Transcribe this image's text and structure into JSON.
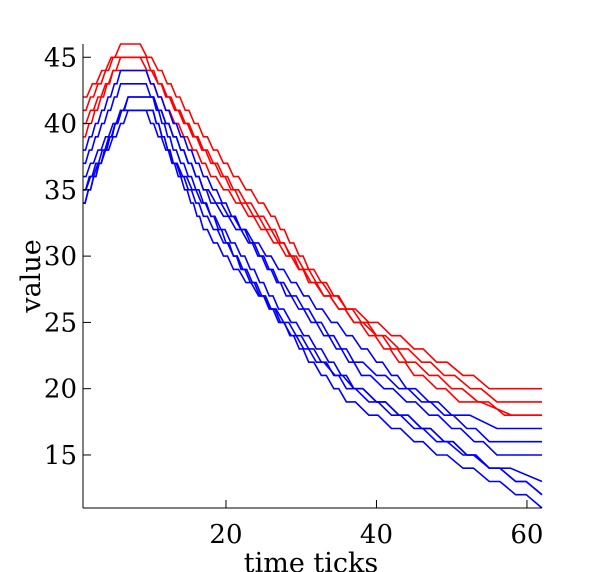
{
  "chart_data": {
    "type": "line",
    "xlabel": "time ticks",
    "ylabel": "value",
    "xlim": [
      1,
      62
    ],
    "ylim": [
      11,
      46
    ],
    "xticks": [
      20,
      40,
      60
    ],
    "yticks": [
      15,
      20,
      25,
      30,
      35,
      40,
      45
    ],
    "grid": false,
    "legend": "none",
    "series_note_colors": {
      "red": "#ff0000",
      "blue": "#0000ff"
    },
    "series": [
      {
        "color": "#ff0000",
        "x": [
          1,
          6,
          8,
          11,
          17,
          21,
          26,
          31,
          36,
          42,
          48,
          55,
          62
        ],
        "values": [
          42,
          46,
          46,
          44,
          39,
          36,
          33,
          29,
          26,
          24,
          22,
          20,
          20
        ]
      },
      {
        "color": "#ff0000",
        "x": [
          1,
          5,
          8,
          11,
          17,
          21,
          26,
          31,
          37,
          43,
          49,
          56,
          62
        ],
        "values": [
          41,
          45,
          45,
          43,
          38,
          35,
          32,
          28,
          25,
          23,
          21,
          19,
          19
        ]
      },
      {
        "color": "#ff0000",
        "x": [
          1,
          6,
          9,
          12,
          18,
          22,
          27,
          32,
          38,
          44,
          50,
          57,
          62
        ],
        "values": [
          40,
          45,
          45,
          42,
          37,
          34,
          31,
          28,
          25,
          22,
          20,
          18,
          18
        ]
      },
      {
        "color": "#ff0000",
        "x": [
          1,
          5,
          9,
          12,
          18,
          23,
          28,
          33,
          39,
          45,
          51,
          58,
          62
        ],
        "values": [
          39,
          44,
          44,
          41,
          36,
          33,
          30,
          27,
          24,
          21,
          19,
          18,
          18
        ]
      },
      {
        "color": "#0000ff",
        "x": [
          1,
          6,
          9,
          12,
          17,
          22,
          27,
          32,
          38,
          44,
          50,
          56,
          62
        ],
        "values": [
          38,
          44,
          44,
          41,
          36,
          32,
          29,
          26,
          23,
          20,
          18,
          17,
          17
        ]
      },
      {
        "color": "#0000ff",
        "x": [
          1,
          6,
          9,
          12,
          17,
          22,
          27,
          32,
          37,
          43,
          49,
          55,
          62
        ],
        "values": [
          37,
          43,
          43,
          40,
          35,
          32,
          28,
          25,
          22,
          20,
          18,
          16,
          16
        ]
      },
      {
        "color": "#0000ff",
        "x": [
          1,
          7,
          10,
          13,
          18,
          23,
          28,
          33,
          38,
          44,
          50,
          56,
          62
        ],
        "values": [
          36,
          42,
          42,
          39,
          34,
          31,
          27,
          24,
          21,
          19,
          17,
          15,
          15
        ]
      },
      {
        "color": "#0000ff",
        "x": [
          1,
          7,
          10,
          13,
          18,
          22,
          27,
          32,
          37,
          43,
          49,
          55,
          62
        ],
        "values": [
          35,
          42,
          42,
          38,
          33,
          30,
          26,
          23,
          20,
          18,
          16,
          14,
          13
        ]
      },
      {
        "color": "#0000ff",
        "x": [
          1,
          7,
          10,
          13,
          18,
          22,
          27,
          32,
          37,
          43,
          49,
          55,
          62
        ],
        "values": [
          35,
          41,
          41,
          37,
          33,
          29,
          25,
          22,
          20,
          18,
          16,
          14,
          12
        ]
      },
      {
        "color": "#0000ff",
        "x": [
          1,
          6,
          9,
          12,
          17,
          21,
          26,
          31,
          36,
          42,
          48,
          55,
          62
        ],
        "values": [
          34,
          41,
          41,
          38,
          32,
          29,
          26,
          23,
          20,
          18,
          16,
          14,
          12
        ]
      },
      {
        "color": "#0000ff",
        "x": [
          1,
          6,
          10,
          13,
          17,
          21,
          26,
          31,
          36,
          42,
          48,
          55,
          62
        ],
        "values": [
          34,
          41,
          41,
          37,
          33,
          30,
          26,
          22,
          19,
          17,
          15,
          13,
          11
        ]
      }
    ]
  }
}
